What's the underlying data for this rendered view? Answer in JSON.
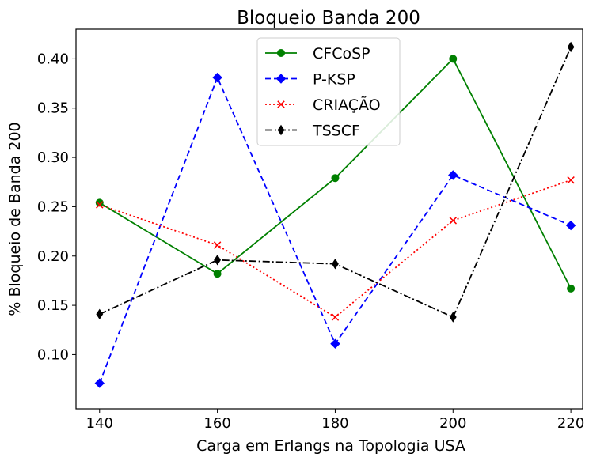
{
  "chart_data": {
    "type": "line",
    "title": "Bloqueio Banda 200",
    "xlabel": "Carga em Erlangs na Topologia USA",
    "ylabel": "% Bloqueio de Banda 200",
    "x": [
      140,
      160,
      180,
      200,
      220
    ],
    "xticks": [
      "140",
      "160",
      "180",
      "200",
      "220"
    ],
    "yticks": [
      "0.10",
      "0.15",
      "0.20",
      "0.25",
      "0.30",
      "0.35",
      "0.40"
    ],
    "xlim": [
      136,
      222
    ],
    "ylim": [
      0.045,
      0.43
    ],
    "grid": false,
    "legend_position": "top-center",
    "series": [
      {
        "name": "CFCoSP",
        "color": "#008000",
        "dash": "solid",
        "marker": "circle",
        "values": [
          0.254,
          0.182,
          0.279,
          0.4,
          0.167
        ]
      },
      {
        "name": "P-KSP",
        "color": "#0000ff",
        "dash": "dashed",
        "marker": "diamond",
        "values": [
          0.071,
          0.381,
          0.111,
          0.282,
          0.231
        ]
      },
      {
        "name": "CRIAÇÃO",
        "color": "#ff0000",
        "dash": "dotted",
        "marker": "x",
        "values": [
          0.252,
          0.211,
          0.138,
          0.236,
          0.277
        ]
      },
      {
        "name": "TSSCF",
        "color": "#000000",
        "dash": "dashdot",
        "marker": "thin-diamond",
        "values": [
          0.141,
          0.196,
          0.192,
          0.138,
          0.412
        ]
      }
    ]
  }
}
